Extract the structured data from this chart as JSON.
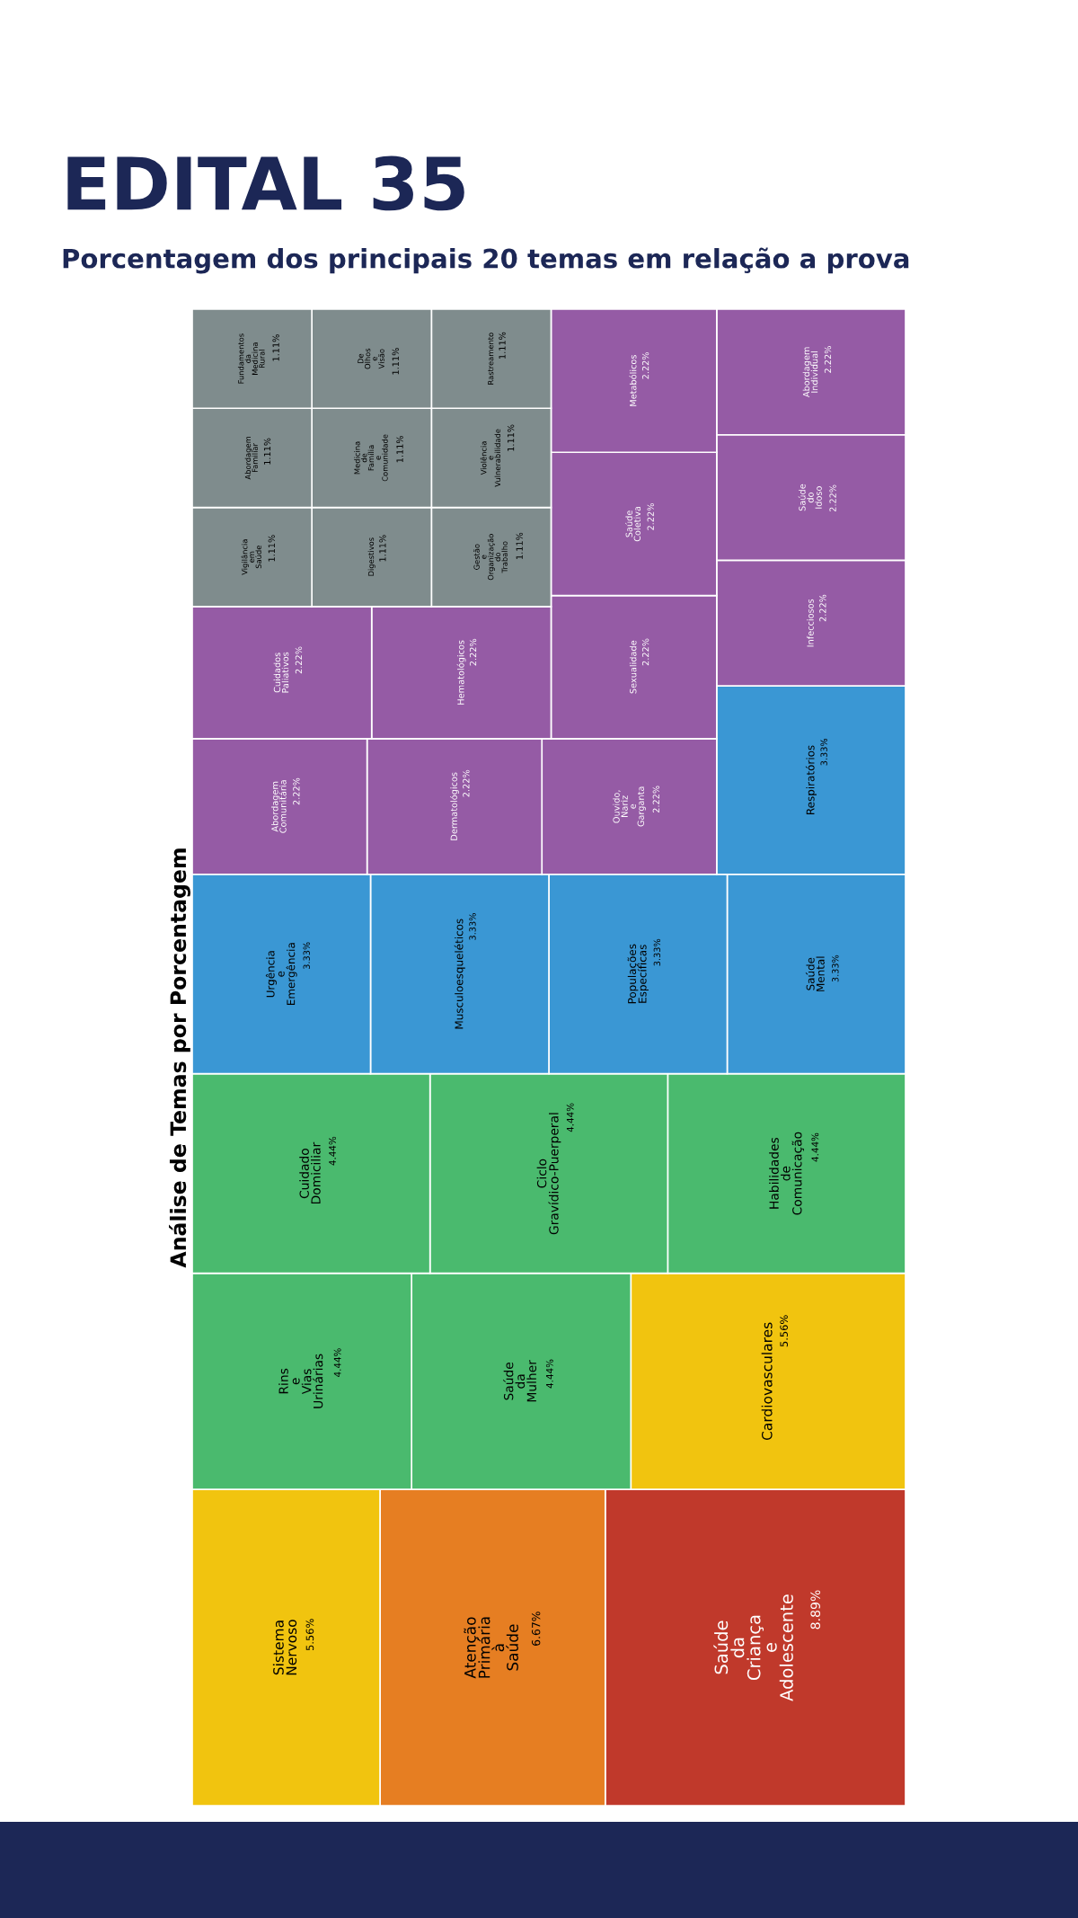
{
  "chart_data": {
    "type": "other",
    "title": "EDITAL 35",
    "subtitle": "Porcentagem dos principais 20 temas em relação a prova",
    "ylabel": "Análise de Temas por Porcentagem",
    "categories": [
      "Saúde da Criança e Adolescente",
      "Atenção Primária à Saúde",
      "Sistema Nervoso",
      "Cardiovasculares",
      "Saúde da Mulher",
      "Rins e Vias Urinárias",
      "Habilidades de Comunicação",
      "Ciclo Gravídico-Puerperal",
      "Cuidado Domiciliar",
      "Saúde Mental",
      "Populações Específicas",
      "Musculoesqueléticos",
      "Urgência e Emergência",
      "Respiratórios",
      "Infecciosos",
      "Saúde do Idoso",
      "Abordagem Individual",
      "Ouvido, Nariz e Garganta",
      "Dermatológicos",
      "Abordagem Comunitária",
      "Sexualidade",
      "Saúde Coletiva",
      "Metabólicos",
      "Hematológicos",
      "Cuidados Paliativos",
      "Gestão e Organização do Trabalho",
      "Violência e Vulnerabilidade",
      "Rastreamento",
      "Digestivos",
      "Vigilância em Saúde",
      "Medicina de Família e Comunidade",
      "De Olhos e Visão",
      "Abordagem Familiar",
      "Fundamentos da Medicina Rural"
    ],
    "values": [
      8.89,
      6.67,
      5.56,
      5.56,
      4.44,
      4.44,
      4.44,
      4.44,
      4.44,
      3.33,
      3.33,
      3.33,
      3.33,
      3.33,
      2.22,
      2.22,
      2.22,
      2.22,
      2.22,
      2.22,
      2.22,
      2.22,
      2.22,
      2.22,
      2.22,
      1.11,
      1.11,
      1.11,
      1.11,
      1.11,
      1.11,
      1.11,
      1.11,
      1.11
    ],
    "value_labels": [
      "8.89%",
      "6.67%",
      "5.56%",
      "5.56%",
      "4.44%",
      "4.44%",
      "4.44%",
      "4.44%",
      "4.44%",
      "3.33%",
      "3.33%",
      "3.33%",
      "3.33%",
      "3.33%",
      "2.22%",
      "2.22%",
      "2.22%",
      "2.22%",
      "2.22%",
      "2.22%",
      "2.22%",
      "2.22%",
      "2.22%",
      "2.22%",
      "2.22%",
      "1.11%",
      "1.11%",
      "1.11%",
      "1.11%",
      "1.11%",
      "1.11%",
      "1.11%",
      "1.11%",
      "1.11%"
    ],
    "colors": [
      "#c0392b",
      "#e67e22",
      "#f1c40f",
      "#f1c40f",
      "#4aba6e",
      "#4aba6e",
      "#4aba6e",
      "#4aba6e",
      "#4aba6e",
      "#3a97d4",
      "#3a97d4",
      "#3a97d4",
      "#3a97d4",
      "#3a97d4",
      "#955ba5",
      "#955ba5",
      "#955ba5",
      "#955ba5",
      "#955ba5",
      "#955ba5",
      "#955ba5",
      "#955ba5",
      "#955ba5",
      "#955ba5",
      "#955ba5",
      "#7f8c8d",
      "#7f8c8d",
      "#7f8c8d",
      "#7f8c8d",
      "#7f8c8d",
      "#7f8c8d",
      "#7f8c8d",
      "#7f8c8d",
      "#7f8c8d"
    ]
  }
}
